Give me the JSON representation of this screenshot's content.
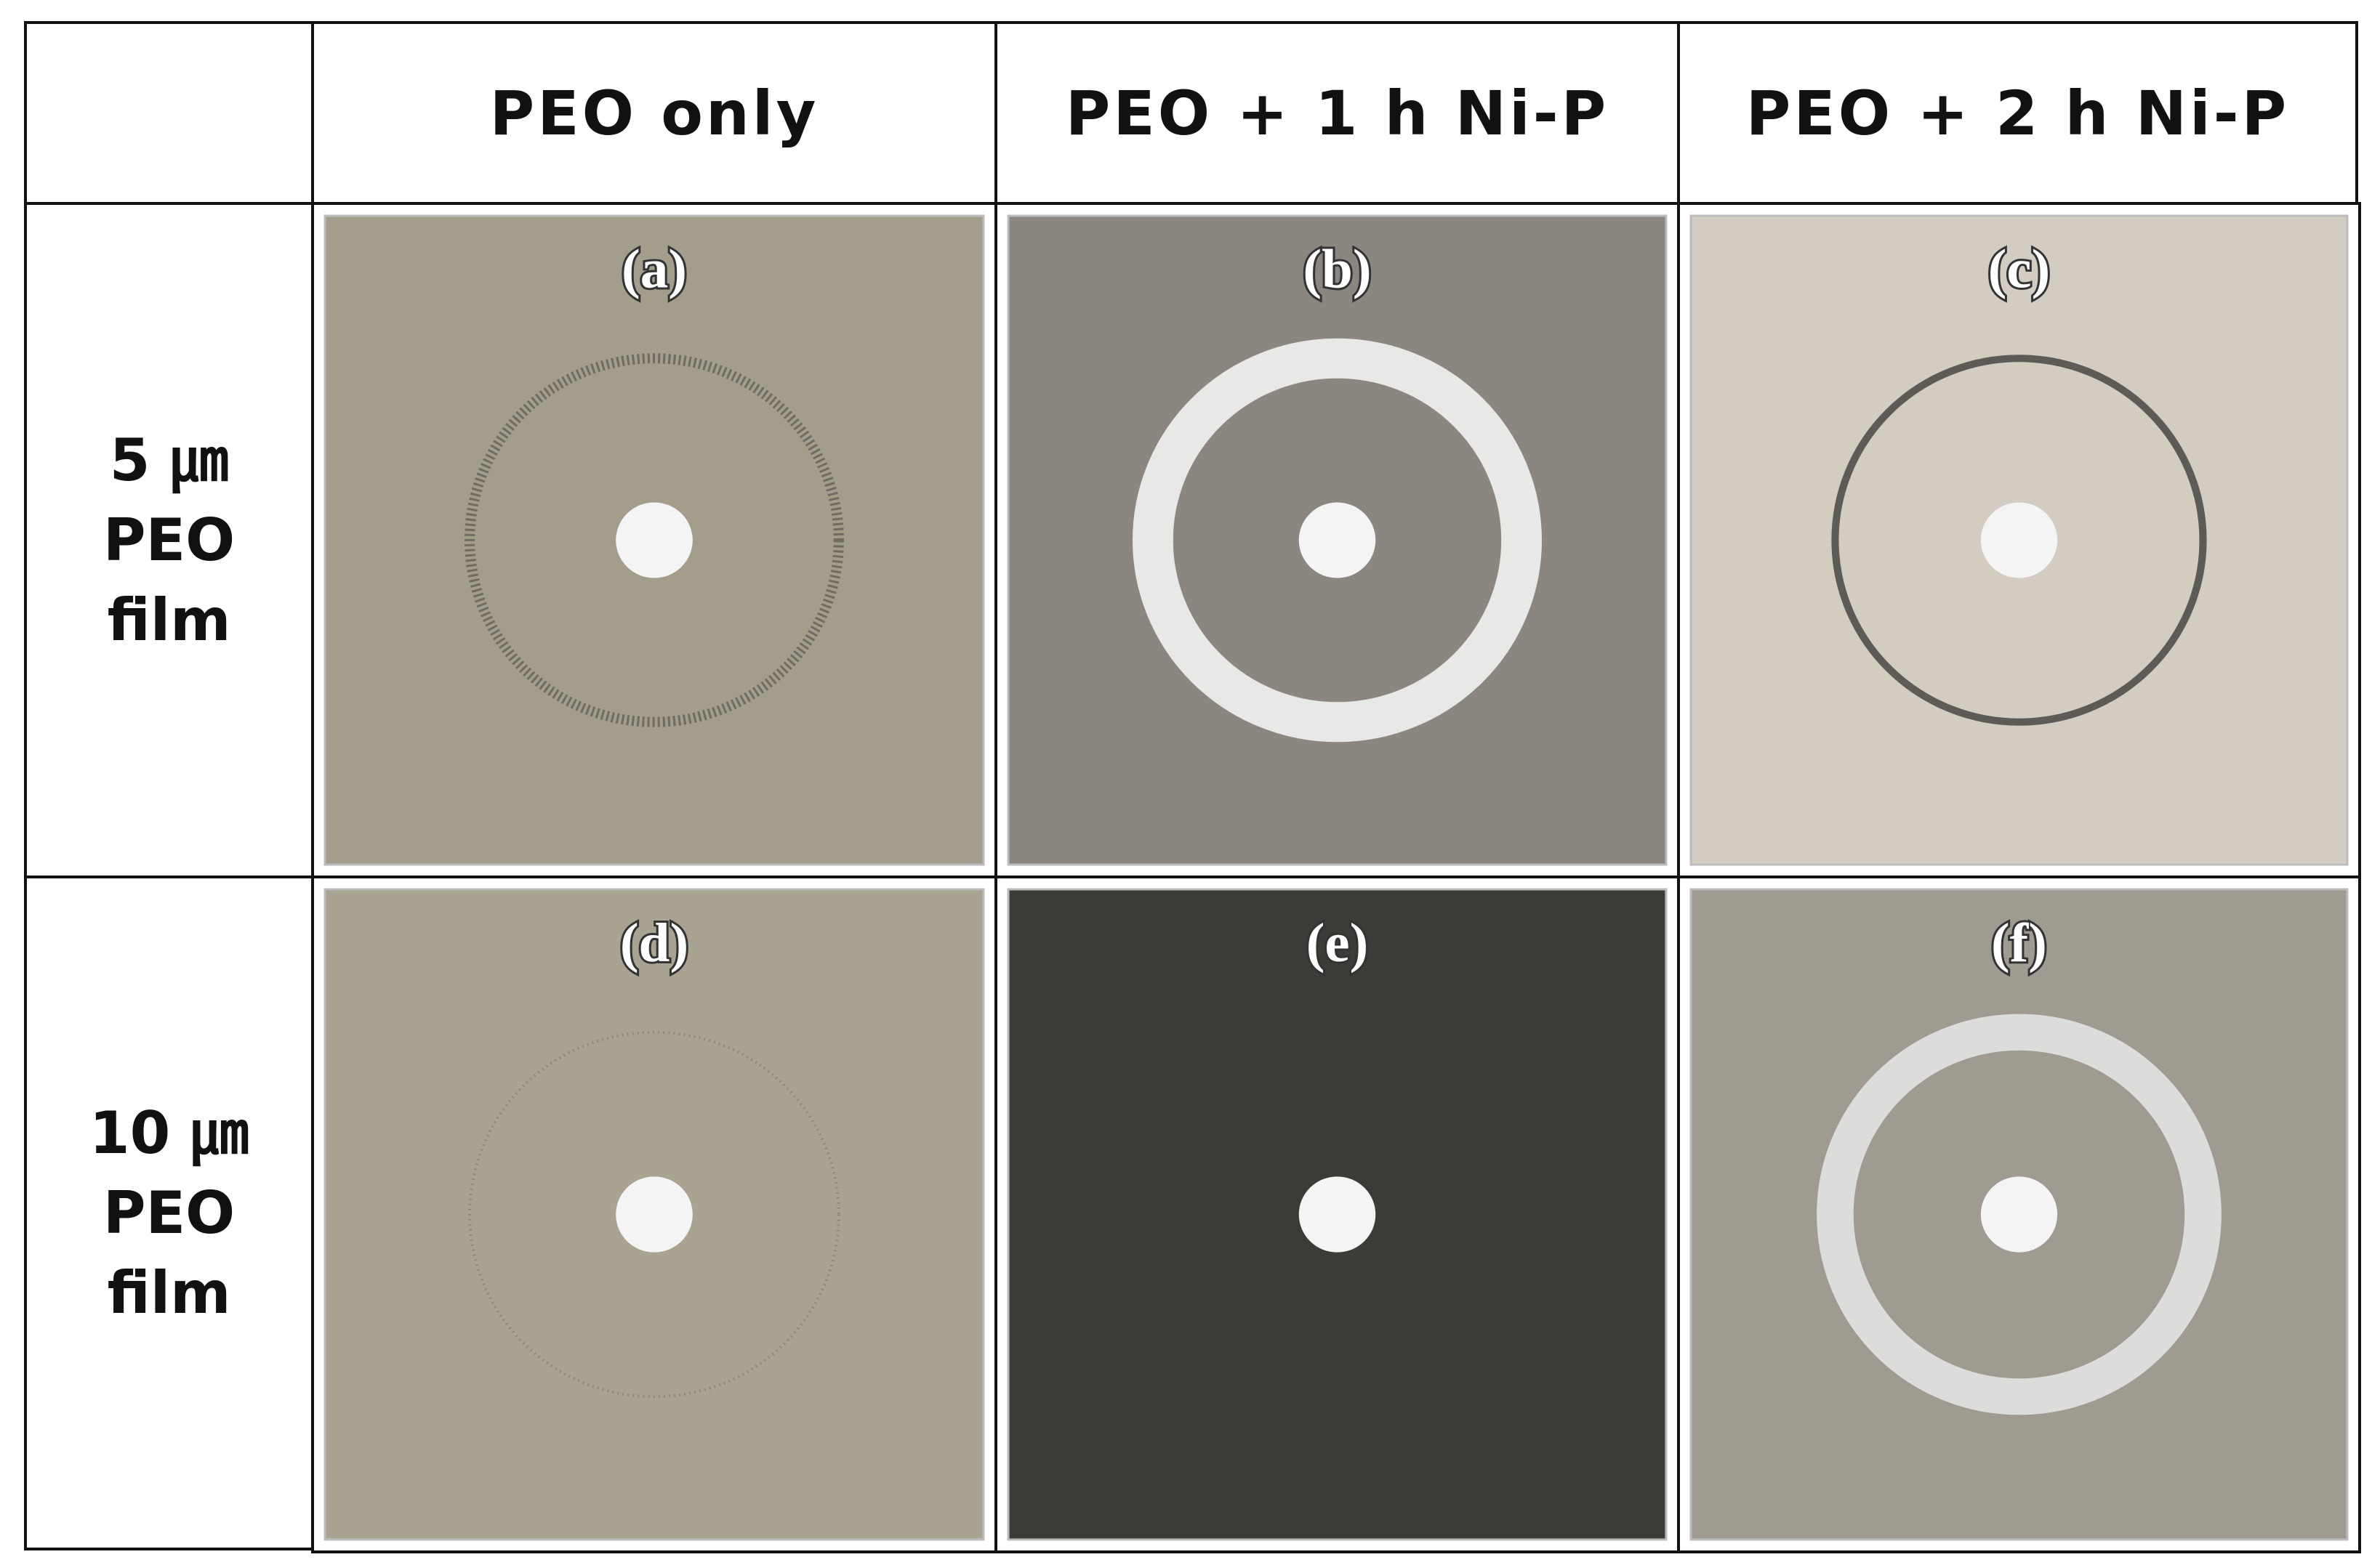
{
  "header": {
    "columns": [
      "PEO only",
      "PEO + 1 h Ni-P",
      "PEO + 2 h Ni-P"
    ]
  },
  "rows": [
    {
      "label": [
        "5 ㎛",
        "PEO",
        "film"
      ],
      "panels": [
        "(a)",
        "(b)",
        "(c)"
      ]
    },
    {
      "label": [
        "10 ㎛",
        "PEO",
        "film"
      ],
      "panels": [
        "(d)",
        "(e)",
        "(f)"
      ]
    }
  ]
}
